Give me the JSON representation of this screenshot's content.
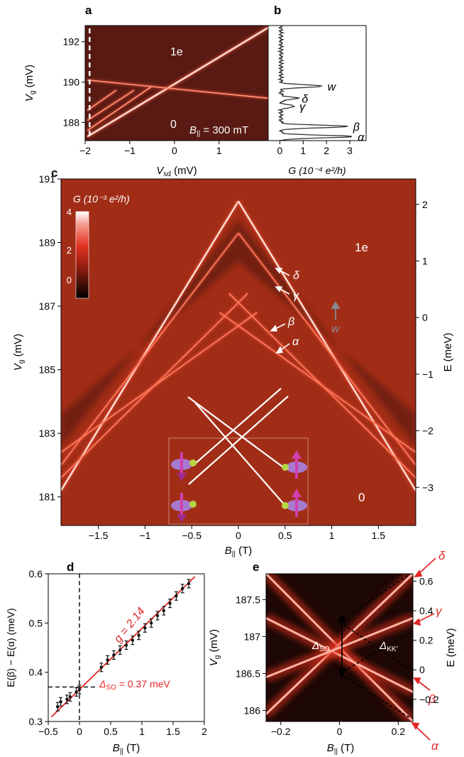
{
  "panels": {
    "a": {
      "label": "a",
      "xlabel_main": "V",
      "xlabel_sub": "sd",
      "xlabel_unit": " (mV)",
      "ylabel_main": "V",
      "ylabel_sub": "g",
      "ylabel_unit": " (mV)",
      "xticks": [
        "−2",
        "−1",
        "0",
        "1"
      ],
      "xtick_values": [
        -2,
        -1,
        0,
        1
      ],
      "yticks": [
        "192",
        "190",
        "188"
      ],
      "ytick_values": [
        192,
        190,
        188
      ],
      "xlim": [
        -2,
        2.1
      ],
      "ylim": [
        187.1,
        192.8
      ],
      "region_top": "1e",
      "region_bottom": "0",
      "field_main": "B",
      "field_sub": "||",
      "field_value": " = 300 mT"
    },
    "b": {
      "label": "b",
      "xlabel": "G (10⁻⁴ e²/h)",
      "xticks": [
        "0",
        "1",
        "2",
        "3"
      ],
      "xtick_values": [
        0,
        1,
        2,
        3
      ],
      "xlim": [
        -0.5,
        3.7
      ],
      "peaks": [
        {
          "name": "w",
          "vg": 189.8,
          "g": 1.8
        },
        {
          "name": "δ",
          "vg": 189.2,
          "g": 0.7
        },
        {
          "name": "γ",
          "vg": 188.8,
          "g": 0.6
        },
        {
          "name": "β",
          "vg": 187.8,
          "g": 2.9
        },
        {
          "name": "α",
          "vg": 187.3,
          "g": 3.1
        }
      ]
    },
    "c": {
      "label": "c",
      "xlabel_main": "B",
      "xlabel_sub": "||",
      "xlabel_unit": " (T)",
      "ylabel_main": "V",
      "ylabel_sub": "g",
      "ylabel_unit": " (mV)",
      "y2label": "E (meV)",
      "xticks": [
        "−1.5",
        "−1",
        "−0.5",
        "0",
        "0.5",
        "1",
        "1.5"
      ],
      "xtick_values": [
        -1.5,
        -1,
        -0.5,
        0,
        0.5,
        1,
        1.5
      ],
      "yticks": [
        "181",
        "183",
        "185",
        "187",
        "189",
        "191"
      ],
      "ytick_values": [
        181,
        183,
        185,
        187,
        189,
        191
      ],
      "y2ticks": [
        "−3",
        "−2",
        "−1",
        "0",
        "1",
        "2"
      ],
      "y2tick_values": [
        -3,
        -2,
        -1,
        0,
        1,
        2
      ],
      "xlim": [
        -1.9,
        1.9
      ],
      "ylim": [
        180.1,
        191.0
      ],
      "colorbar_title": "G (10⁻³ e²/h)",
      "colorbar_ticks": [
        "4",
        "2",
        "0"
      ],
      "region_top": "1e",
      "region_bottom": "0",
      "arrows": [
        "δ",
        "γ",
        "β",
        "α",
        "w"
      ]
    },
    "d": {
      "label": "d",
      "xlabel_main": "B",
      "xlabel_sub": "||",
      "xlabel_unit": " (T)",
      "ylabel": "E(β) − E(α) (meV)",
      "xticks": [
        "−0.5",
        "0",
        "0.5",
        "1",
        "1.5",
        "2"
      ],
      "xtick_values": [
        -0.5,
        0,
        0.5,
        1,
        1.5,
        2
      ],
      "yticks": [
        "0.3",
        "0.4",
        "0.5",
        "0.6"
      ],
      "ytick_values": [
        0.3,
        0.4,
        0.5,
        0.6
      ],
      "xlim": [
        -0.5,
        2
      ],
      "ylim": [
        0.3,
        0.6
      ],
      "fit_label": "g = 2.14",
      "delta_label_main": "Δ",
      "delta_label_sub": "SO",
      "delta_label_value": " = 0.37 meV",
      "colors": {
        "fit": "#e32626",
        "data": "#111111"
      }
    },
    "e": {
      "label": "e",
      "xlabel_main": "B",
      "xlabel_sub": "||",
      "xlabel_unit": " (T)",
      "ylabel_main": "V",
      "ylabel_sub": "g",
      "ylabel_unit": " (mV)",
      "y2label": "E (meV)",
      "xticks": [
        "−0.2",
        "0",
        "0.2"
      ],
      "xtick_values": [
        -0.2,
        0,
        0.2
      ],
      "yticks": [
        "187.5",
        "187",
        "186.5",
        "186"
      ],
      "ytick_values": [
        187.5,
        187,
        186.5,
        186
      ],
      "y2ticks": [
        "0.6",
        "0.4",
        "0.2",
        "0",
        "−0.2"
      ],
      "y2tick_values": [
        0.6,
        0.4,
        0.2,
        0,
        -0.2
      ],
      "xlim": [
        -0.25,
        0.25
      ],
      "ylim": [
        185.85,
        187.85
      ],
      "dso_main": "Δ",
      "dso_sub": "SO",
      "dkk_main": "Δ",
      "dkk_sub": "KK′",
      "state_labels": [
        "δ",
        "γ",
        "β",
        "α"
      ]
    }
  },
  "chart_data": [
    {
      "type": "heatmap",
      "panel": "a",
      "x_var": "V_sd (mV)",
      "y_var": "V_g (mV)",
      "xlim": [
        -2,
        2.1
      ],
      "ylim": [
        187.1,
        192.8
      ],
      "lines": [
        {
          "from": [
            -1.95,
            187.3
          ],
          "to": [
            2.1,
            192.7
          ]
        },
        {
          "from": [
            -1.95,
            190.1
          ],
          "to": [
            2.1,
            189.2
          ]
        },
        {
          "from": [
            -1.95,
            187.6
          ],
          "to": [
            -0.5,
            189.8
          ]
        },
        {
          "from": [
            -1.95,
            188.1
          ],
          "to": [
            -0.9,
            189.6
          ]
        },
        {
          "from": [
            -1.95,
            188.6
          ],
          "to": [
            -1.3,
            189.6
          ]
        }
      ],
      "dashed_marker_x": -1.9
    },
    {
      "type": "line",
      "panel": "b",
      "x_var": "G (10^-4 e^2/h)",
      "y_var": "V_g (mV)",
      "baseline": 0,
      "peaks": [
        {
          "vg": 189.8,
          "g": 1.8
        },
        {
          "vg": 189.2,
          "g": 0.7
        },
        {
          "vg": 188.8,
          "g": 0.6
        },
        {
          "vg": 187.8,
          "g": 2.9
        },
        {
          "vg": 187.3,
          "g": 3.1
        }
      ]
    },
    {
      "type": "heatmap",
      "panel": "c",
      "x_var": "B_|| (T)",
      "y_var": "V_g (mV)",
      "xlim": [
        -1.9,
        1.9
      ],
      "ylim": [
        180.1,
        191.0
      ],
      "lines": [
        {
          "from": [
            -1.9,
            181.2
          ],
          "to": [
            0,
            190.3
          ]
        },
        {
          "from": [
            0,
            190.3
          ],
          "to": [
            1.9,
            181.2
          ]
        },
        {
          "from": [
            -1.9,
            182.0
          ],
          "to": [
            0,
            189.3
          ]
        },
        {
          "from": [
            0,
            189.3
          ],
          "to": [
            1.9,
            182.0
          ]
        },
        {
          "from": [
            -1.9,
            181.6
          ],
          "to": [
            0.1,
            187.4
          ]
        },
        {
          "from": [
            -0.1,
            187.4
          ],
          "to": [
            1.9,
            181.6
          ]
        },
        {
          "from": [
            -1.9,
            182.4
          ],
          "to": [
            0.2,
            186.8
          ]
        },
        {
          "from": [
            -0.2,
            186.8
          ],
          "to": [
            1.9,
            182.4
          ]
        }
      ]
    },
    {
      "type": "scatter",
      "panel": "d",
      "x_var": "B_|| (T)",
      "y_var": "E(beta) - E(alpha) (meV)",
      "x": [
        -0.35,
        -0.3,
        -0.2,
        -0.15,
        -0.05,
        0.0,
        0.35,
        0.45,
        0.55,
        0.65,
        0.75,
        0.85,
        0.95,
        1.05,
        1.15,
        1.25,
        1.35,
        1.45,
        1.55,
        1.65,
        1.75
      ],
      "y": [
        0.33,
        0.34,
        0.345,
        0.35,
        0.36,
        0.365,
        0.41,
        0.425,
        0.435,
        0.445,
        0.455,
        0.465,
        0.475,
        0.49,
        0.5,
        0.515,
        0.525,
        0.54,
        0.555,
        0.57,
        0.58
      ],
      "fit": {
        "slope": 0.124,
        "intercept": 0.365
      },
      "delta_so": 0.37
    },
    {
      "type": "heatmap",
      "panel": "e",
      "x_var": "B_|| (T)",
      "y_var": "V_g (mV)",
      "xlim": [
        -0.25,
        0.25
      ],
      "ylim": [
        185.85,
        187.85
      ],
      "lines": [
        {
          "from": [
            -0.25,
            187.85
          ],
          "to": [
            0.25,
            185.85
          ]
        },
        {
          "from": [
            -0.25,
            185.95
          ],
          "to": [
            0.25,
            187.85
          ]
        },
        {
          "from": [
            -0.25,
            187.25
          ],
          "to": [
            0.25,
            186.25
          ]
        },
        {
          "from": [
            -0.25,
            186.45
          ],
          "to": [
            0.25,
            187.25
          ]
        }
      ],
      "dashed": [
        {
          "from": [
            0,
            187.2
          ],
          "to": [
            0.24,
            187.85
          ]
        },
        {
          "from": [
            0,
            187.2
          ],
          "to": [
            0.24,
            186.55
          ]
        },
        {
          "from": [
            0,
            186.5
          ],
          "to": [
            0.24,
            187.05
          ]
        },
        {
          "from": [
            0,
            186.5
          ],
          "to": [
            0.24,
            185.9
          ]
        }
      ]
    }
  ]
}
